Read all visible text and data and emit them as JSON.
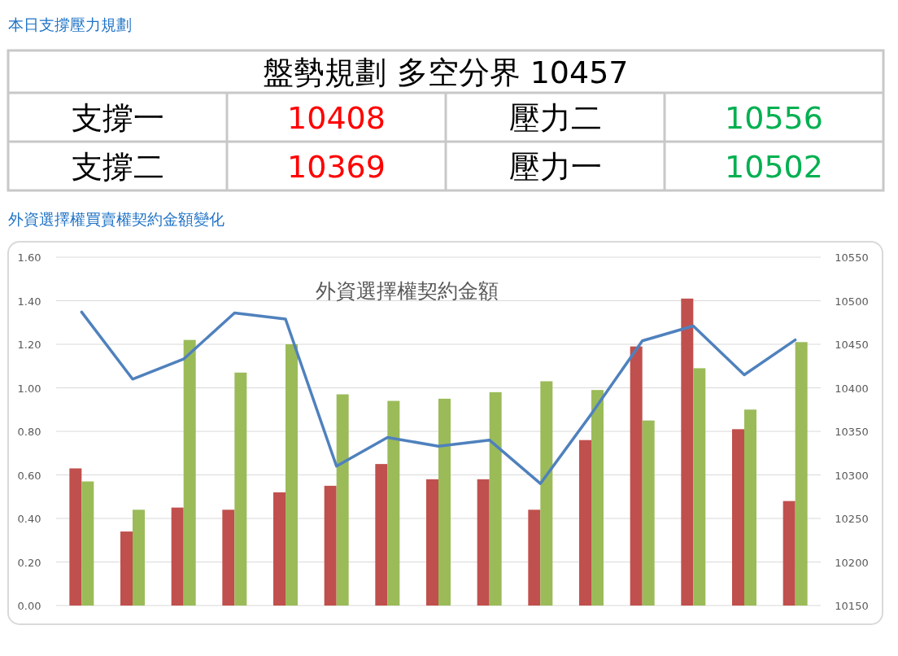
{
  "chart_data": [
    {
      "type": "other",
      "title": "本日支撐壓力規劃",
      "annotations": [
        "盤勢規劃 多空分界 10457",
        "支撐一",
        "10408",
        "壓力二",
        "10556",
        "支撐二",
        "10369",
        "壓力一",
        "10502"
      ],
      "colors": [
        "#000000",
        "#000000",
        "#ff0000",
        "#000000",
        "#00b050",
        "#000000",
        "#ff0000",
        "#000000",
        "#00b050"
      ]
    },
    {
      "type": "bar",
      "title": "外資選擇權買賣權契約金額變化",
      "subtitle": "外資選擇權契約金額",
      "categories": [
        null,
        null,
        null,
        null,
        null,
        null,
        null,
        null,
        null,
        null,
        null,
        null,
        null,
        null,
        null
      ],
      "series": [
        {
          "color": "#c0504d",
          "values": [
            0.63,
            0.34,
            0.45,
            0.44,
            0.52,
            0.55,
            0.65,
            0.58,
            0.58,
            0.44,
            0.76,
            1.19,
            1.41,
            0.81,
            0.48
          ]
        },
        {
          "color": "#9bbb59",
          "values": [
            0.57,
            0.44,
            1.22,
            1.07,
            1.2,
            0.97,
            0.94,
            0.95,
            0.98,
            1.03,
            0.99,
            0.85,
            1.09,
            0.9,
            1.21
          ]
        },
        {
          "type": "line",
          "axis": "y2",
          "color": "#4f81bd",
          "values": [
            10487,
            10410,
            10433,
            10486,
            10479,
            10310,
            10343,
            10333,
            10340,
            10290,
            10370,
            10454,
            10471,
            10415,
            10455
          ]
        }
      ],
      "ylim": [
        0,
        1.6
      ],
      "yticks": [
        {
          "value": 0,
          "label": "0.00"
        },
        {
          "value": 0.2,
          "label": "0.20"
        },
        {
          "value": 0.4,
          "label": "0.40"
        },
        {
          "value": 0.6,
          "label": "0.60"
        },
        {
          "value": 0.8,
          "label": "0.80"
        },
        {
          "value": 1.0,
          "label": "1.00"
        },
        {
          "value": 1.2,
          "label": "1.20"
        },
        {
          "value": 1.4,
          "label": "1.40"
        },
        {
          "value": 1.6,
          "label": "1.60"
        }
      ],
      "y2lim": [
        10150,
        10550
      ],
      "y2ticks": [
        10150,
        10200,
        10250,
        10300,
        10350,
        10400,
        10450,
        10500,
        10550
      ],
      "grid": "y",
      "marker": "none"
    }
  ]
}
